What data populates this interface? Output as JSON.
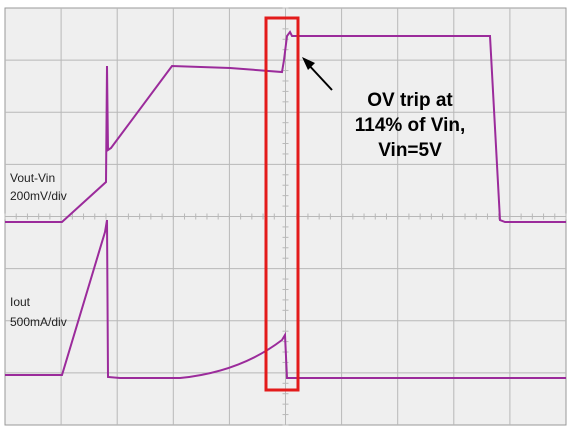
{
  "trace_labels": [
    {
      "name": "Vout-Vin",
      "scale": "200mV/div"
    },
    {
      "name": "Iout",
      "scale": "500mA/div"
    }
  ],
  "annotation": {
    "lines": [
      "OV trip at",
      "114% of Vin,",
      "Vin=5V"
    ]
  }
}
